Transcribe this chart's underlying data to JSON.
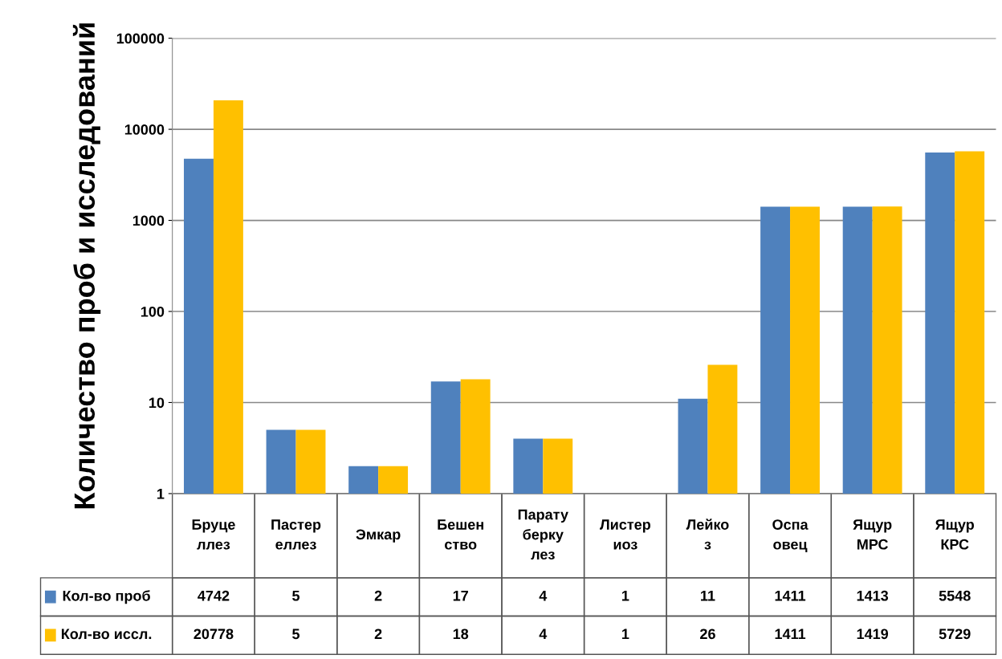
{
  "chart_data": {
    "type": "bar",
    "ylabel": "Количество проб и исследований",
    "categories": [
      "Бруце\nллез",
      "Пастер\nеллез",
      "Эмкар",
      "Бешен\nство",
      "Парату\nберку\nлез",
      "Листер\nиоз",
      "Лейко\nз",
      "Оспа\nовец",
      "Ящур\nМРС",
      "Ящур\nКРС"
    ],
    "series": [
      {
        "name": "Кол-во проб",
        "color": "#4f81bd",
        "values": [
          4742,
          5,
          2,
          17,
          4,
          1,
          11,
          1411,
          1413,
          5548
        ]
      },
      {
        "name": "Кол-во иссл.",
        "color": "#ffc000",
        "values": [
          20778,
          5,
          2,
          18,
          4,
          1,
          26,
          1411,
          1419,
          5729
        ]
      }
    ],
    "log": true,
    "ylim": [
      1,
      100000
    ],
    "yticks": [
      1,
      10,
      100,
      1000,
      10000,
      100000
    ],
    "grid": "y",
    "data_labels": true,
    "legend": "bottom left"
  }
}
